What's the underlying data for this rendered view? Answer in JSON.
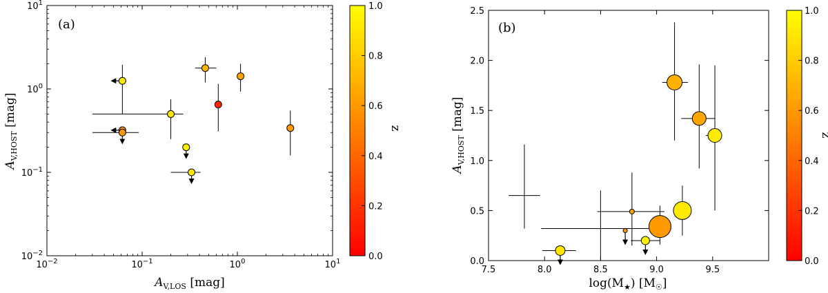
{
  "chart_data": [
    {
      "type": "scatter",
      "panel_label": "(a)",
      "xscale": "log",
      "yscale": "log",
      "xlim": [
        0.01,
        10
      ],
      "ylim": [
        0.01,
        10
      ],
      "xlabel": "A_V,LOS [mag]",
      "ylabel": "A_V,HOST [mag]",
      "xlabel_main": "A",
      "xlabel_sub": "V,LOS",
      "xlabel_unit": " [mag]",
      "ylabel_main": "A",
      "ylabel_sub": "V,HOST",
      "ylabel_unit": " [mag]",
      "x_ticks": [
        {
          "value": 0.01,
          "base": "10",
          "exp": "−2"
        },
        {
          "value": 0.1,
          "base": "10",
          "exp": "−1"
        },
        {
          "value": 1,
          "base": "10",
          "exp": "0"
        },
        {
          "value": 10,
          "base": "10",
          "exp": "1"
        }
      ],
      "y_ticks": [
        {
          "value": 0.01,
          "base": "10",
          "exp": "−2"
        },
        {
          "value": 0.1,
          "base": "10",
          "exp": "−1"
        },
        {
          "value": 1,
          "base": "10",
          "exp": "0"
        },
        {
          "value": 10,
          "base": "10",
          "exp": "1"
        }
      ],
      "colorbar": {
        "label": "z",
        "min": 0.0,
        "max": 1.0,
        "ticks": [
          "0.0",
          "0.2",
          "0.4",
          "0.6",
          "0.8",
          "1.0"
        ]
      },
      "points": [
        {
          "x": 0.062,
          "y": 1.25,
          "z": 0.92,
          "xlo": 0.062,
          "xhi": 0.062,
          "ylo": 0.5,
          "yhi": 1.95,
          "xlimit": "upper",
          "ylimit": null
        },
        {
          "x": 0.062,
          "y": 0.32,
          "z": 0.6,
          "xlo": 0.062,
          "xhi": 0.062,
          "ylo": 0.32,
          "yhi": 0.32,
          "xlimit": "upper",
          "ylimit": null
        },
        {
          "x": 0.062,
          "y": 0.3,
          "z": 0.6,
          "xlo": 0.03,
          "xhi": 0.092,
          "ylo": 0.3,
          "yhi": 0.3,
          "xlimit": null,
          "ylimit": "upper"
        },
        {
          "x": 0.2,
          "y": 0.5,
          "z": 0.92,
          "xlo": 0.03,
          "xhi": 0.27,
          "ylo": 0.25,
          "yhi": 0.75,
          "xlimit": null,
          "ylimit": null
        },
        {
          "x": 0.29,
          "y": 0.2,
          "z": 0.95,
          "xlo": 0.29,
          "xhi": 0.29,
          "ylo": 0.2,
          "yhi": 0.2,
          "xlimit": null,
          "ylimit": "upper"
        },
        {
          "x": 0.33,
          "y": 0.1,
          "z": 0.9,
          "xlo": 0.2,
          "xhi": 0.41,
          "ylo": 0.1,
          "yhi": 0.1,
          "xlimit": null,
          "ylimit": "upper"
        },
        {
          "x": 0.46,
          "y": 1.78,
          "z": 0.7,
          "xlo": 0.36,
          "xhi": 0.6,
          "ylo": 1.2,
          "yhi": 2.4,
          "xlimit": null,
          "ylimit": null
        },
        {
          "x": 0.63,
          "y": 0.65,
          "z": 0.15,
          "xlo": 0.63,
          "xhi": 0.63,
          "ylo": 0.31,
          "yhi": 1.15,
          "xlimit": null,
          "ylimit": null
        },
        {
          "x": 1.08,
          "y": 1.42,
          "z": 0.65,
          "xlo": 1.08,
          "xhi": 1.08,
          "ylo": 0.93,
          "yhi": 2.0,
          "xlimit": null,
          "ylimit": null
        },
        {
          "x": 3.6,
          "y": 0.34,
          "z": 0.6,
          "xlo": 3.6,
          "xhi": 3.6,
          "ylo": 0.16,
          "yhi": 0.55,
          "xlimit": null,
          "ylimit": null
        }
      ]
    },
    {
      "type": "scatter",
      "panel_label": "(b)",
      "xscale": "linear",
      "yscale": "linear",
      "xlim": [
        7.5,
        10.0
      ],
      "ylim": [
        0.0,
        2.5
      ],
      "xlabel": "log(M★) [M☉]",
      "ylabel": "A_V,HOST [mag]",
      "xlabel_main": "log(M",
      "xlabel_sub": "★",
      "xlabel_unit": ") [M",
      "xlabel_sub2": "☉",
      "xlabel_end": "]",
      "ylabel_main": "A",
      "ylabel_sub": "V,HOST",
      "ylabel_unit": " [mag]",
      "x_ticks": [
        "7.5",
        "8.0",
        "8.5",
        "9.0",
        "9.5"
      ],
      "y_ticks": [
        "0.0",
        "0.5",
        "1.0",
        "1.5",
        "2.0",
        "2.5"
      ],
      "colorbar": {
        "label": "z",
        "min": 0.0,
        "max": 1.0,
        "ticks": [
          "0.0",
          "0.2",
          "0.4",
          "0.6",
          "0.8",
          "1.0"
        ]
      },
      "points": [
        {
          "x": 7.82,
          "y": 0.65,
          "z": null,
          "size": 0,
          "xlo": 7.68,
          "xhi": 7.96,
          "ylo": 0.32,
          "yhi": 1.16,
          "ylimit": null
        },
        {
          "x": 8.5,
          "y": 0.32,
          "z": null,
          "size": 0,
          "xlo": 7.97,
          "xhi": 9.07,
          "ylo": -0.05,
          "yhi": 0.7,
          "ylimit": null
        },
        {
          "x": 8.14,
          "y": 0.1,
          "z": 0.9,
          "size": 7,
          "xlo": 7.98,
          "xhi": 8.28,
          "ylo": 0.1,
          "yhi": 0.1,
          "ylimit": "upper"
        },
        {
          "x": 8.72,
          "y": 0.3,
          "z": 0.6,
          "size": 3,
          "xlo": 8.72,
          "xhi": 8.72,
          "ylo": 0.3,
          "yhi": 0.3,
          "ylimit": "upper"
        },
        {
          "x": 8.78,
          "y": 0.49,
          "z": 0.65,
          "size": 3.5,
          "xlo": 8.47,
          "xhi": 9.07,
          "ylo": 0.15,
          "yhi": 0.88,
          "ylimit": null
        },
        {
          "x": 8.9,
          "y": 0.2,
          "z": 0.95,
          "size": 6,
          "xlo": 8.77,
          "xhi": 9.03,
          "ylo": 0.2,
          "yhi": 0.2,
          "ylimit": "upper"
        },
        {
          "x": 9.03,
          "y": 0.34,
          "z": 0.6,
          "size": 16,
          "xlo": 9.03,
          "xhi": 9.03,
          "ylo": 0.16,
          "yhi": 0.55,
          "ylimit": null
        },
        {
          "x": 9.16,
          "y": 1.78,
          "z": 0.7,
          "size": 11,
          "xlo": 9.05,
          "xhi": 9.28,
          "ylo": 1.2,
          "yhi": 2.38,
          "ylimit": null
        },
        {
          "x": 9.23,
          "y": 0.5,
          "z": 0.92,
          "size": 13,
          "xlo": 9.23,
          "xhi": 9.23,
          "ylo": 0.25,
          "yhi": 0.75,
          "ylimit": null
        },
        {
          "x": 9.38,
          "y": 1.42,
          "z": 0.65,
          "size": 10,
          "xlo": 9.22,
          "xhi": 9.52,
          "ylo": 0.92,
          "yhi": 1.96,
          "ylimit": null
        },
        {
          "x": 9.52,
          "y": 1.25,
          "z": 0.92,
          "size": 10,
          "xlo": 9.44,
          "xhi": 9.58,
          "ylo": 0.5,
          "yhi": 1.95,
          "ylimit": null
        }
      ]
    }
  ]
}
